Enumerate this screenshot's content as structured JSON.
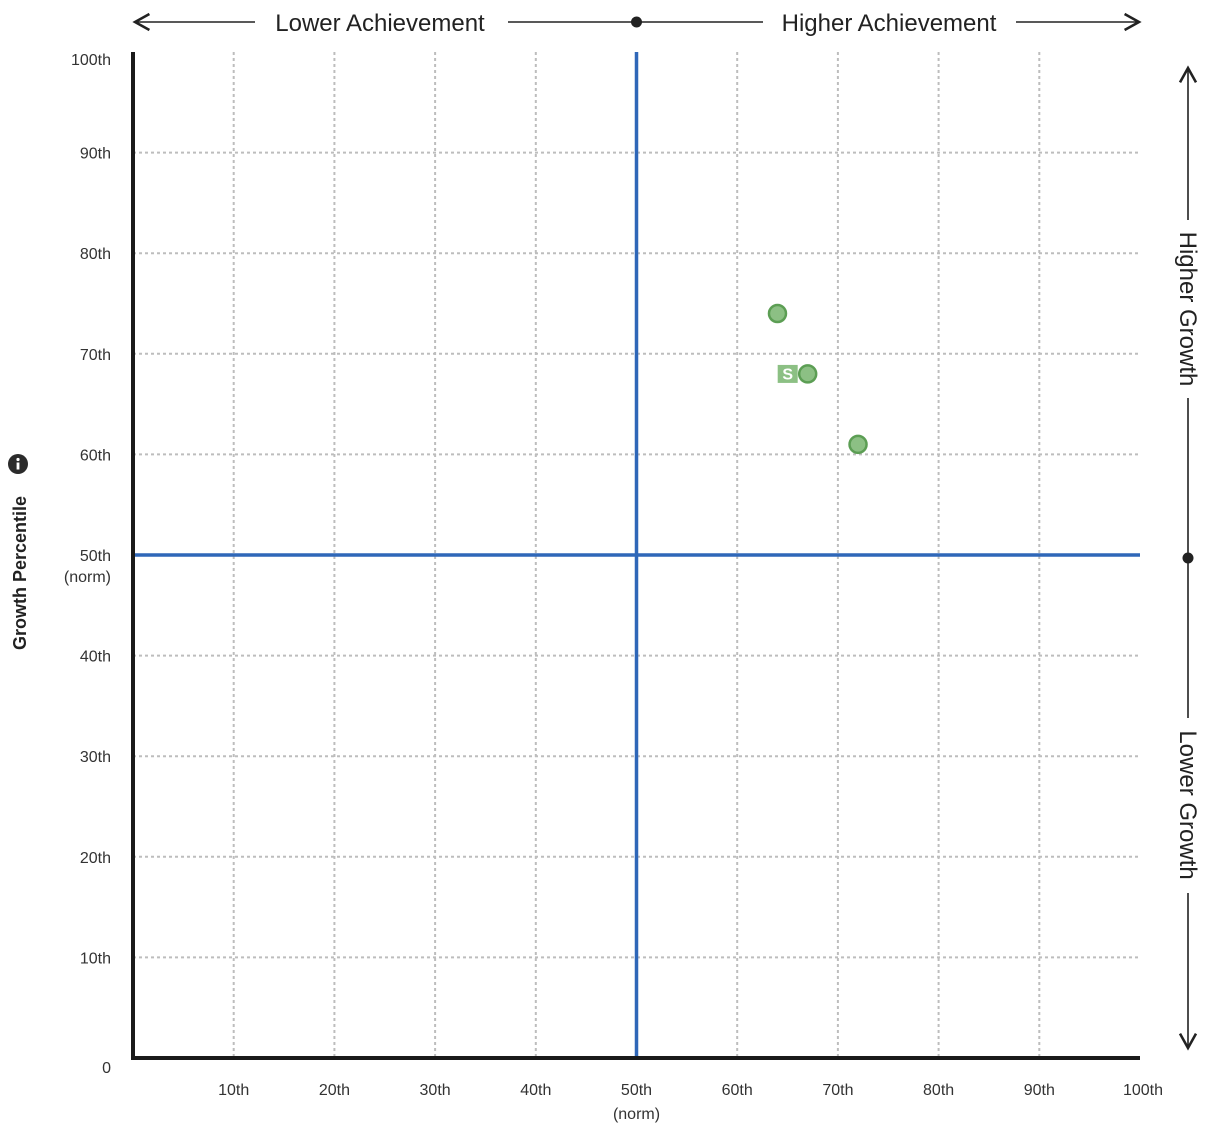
{
  "chart_data": {
    "type": "scatter",
    "title": "",
    "x_axis": {
      "label": "",
      "range": [
        0,
        100
      ],
      "ticks": [
        {
          "value": 10,
          "label": "10th"
        },
        {
          "value": 20,
          "label": "20th"
        },
        {
          "value": 30,
          "label": "30th"
        },
        {
          "value": 40,
          "label": "40th"
        },
        {
          "value": 50,
          "label": "50th",
          "sublabel": "(norm)"
        },
        {
          "value": 60,
          "label": "60th"
        },
        {
          "value": 70,
          "label": "70th"
        },
        {
          "value": 80,
          "label": "80th"
        },
        {
          "value": 90,
          "label": "90th"
        },
        {
          "value": 100,
          "label": "100th"
        }
      ],
      "direction_labels": {
        "low": "Lower Achievement",
        "high": "Higher Achievement"
      }
    },
    "y_axis": {
      "label": "Growth Percentile",
      "range": [
        0,
        100
      ],
      "ticks": [
        {
          "value": 0,
          "label": "0"
        },
        {
          "value": 10,
          "label": "10th"
        },
        {
          "value": 20,
          "label": "20th"
        },
        {
          "value": 30,
          "label": "30th"
        },
        {
          "value": 40,
          "label": "40th"
        },
        {
          "value": 50,
          "label": "50th",
          "sublabel": "(norm)"
        },
        {
          "value": 60,
          "label": "60th"
        },
        {
          "value": 70,
          "label": "70th"
        },
        {
          "value": 80,
          "label": "80th"
        },
        {
          "value": 90,
          "label": "90th"
        },
        {
          "value": 100,
          "label": "100th"
        }
      ],
      "direction_labels": {
        "high": "Higher Growth",
        "low": "Lower Growth"
      }
    },
    "norm_lines": {
      "x": 50,
      "y": 50,
      "color": "#2f67b8"
    },
    "grid": true,
    "point_color": "#8cc084",
    "point_stroke": "#5c9e54",
    "points": [
      {
        "x": 64,
        "y": 74
      },
      {
        "x": 67,
        "y": 68,
        "marker": "S"
      },
      {
        "x": 72,
        "y": 61
      }
    ]
  },
  "info_icon": "info-icon"
}
